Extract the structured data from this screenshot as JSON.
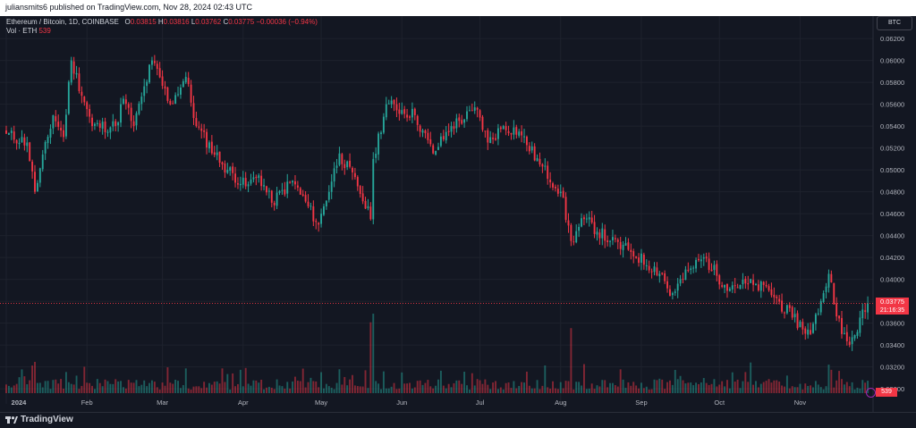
{
  "header": {
    "publish_text": "juliansmits6 published on TradingView.com, Nov 28, 2024 02:43 UTC"
  },
  "legend": {
    "symbol": "Ethereum / Bitcoin, 1D, COINBASE",
    "o_label": "O",
    "o_value": "0.03815",
    "h_label": "H",
    "h_value": "0.03816",
    "l_label": "L",
    "l_value": "0.03762",
    "c_label": "C",
    "c_value": "0.03775",
    "change": "−0.00036 (−0.94%)",
    "vol_label": "Vol · ETH",
    "vol_value": "539"
  },
  "currency_button": "BTC",
  "last_price": {
    "price": "0.03775",
    "countdown": "21:16:35"
  },
  "volume_tag": "539",
  "footer": {
    "brand": "TradingView"
  },
  "colors": {
    "up": "#26a69a",
    "down": "#f23645",
    "background": "#131722",
    "grid": "#1e222d",
    "text": "#b2b5be"
  },
  "chart_data": {
    "type": "candlestick",
    "title": "Ethereum / Bitcoin, 1D, COINBASE",
    "y_axis": {
      "ticks": [
        "0.06200",
        "0.06000",
        "0.05800",
        "0.05600",
        "0.05400",
        "0.05200",
        "0.05000",
        "0.04800",
        "0.04600",
        "0.04400",
        "0.04200",
        "0.04000",
        "0.03800",
        "0.03600",
        "0.03400",
        "0.03200",
        "0.03000"
      ],
      "range": [
        0.0296,
        0.0634
      ]
    },
    "x_axis": {
      "ticks": [
        "2024",
        "Feb",
        "Mar",
        "Apr",
        "May",
        "Jun",
        "Jul",
        "Aug",
        "Sep",
        "Oct",
        "Nov"
      ]
    },
    "series": [
      {
        "name": "ETH/BTC",
        "anchor_dates": [
          "2024-01-01",
          "2024-01-09",
          "2024-01-12",
          "2024-01-19",
          "2024-01-23",
          "2024-01-26",
          "2024-02-03",
          "2024-02-12",
          "2024-02-15",
          "2024-02-19",
          "2024-02-26",
          "2024-03-04",
          "2024-03-10",
          "2024-03-14",
          "2024-03-24",
          "2024-04-02",
          "2024-04-07",
          "2024-04-12",
          "2024-04-20",
          "2024-04-30",
          "2024-05-08",
          "2024-05-15",
          "2024-05-20",
          "2024-05-21",
          "2024-05-26",
          "2024-06-06",
          "2024-06-13",
          "2024-06-20",
          "2024-06-30",
          "2024-07-04",
          "2024-07-10",
          "2024-07-16",
          "2024-07-24",
          "2024-08-01",
          "2024-08-05",
          "2024-08-10",
          "2024-08-20",
          "2024-08-28",
          "2024-09-09",
          "2024-09-12",
          "2024-09-20",
          "2024-09-25",
          "2024-10-03",
          "2024-10-14",
          "2024-10-20",
          "2024-10-29",
          "2024-11-05",
          "2024-11-09",
          "2024-11-12",
          "2024-11-17",
          "2024-11-20",
          "2024-11-27"
        ],
        "anchor_closes": [
          0.0533,
          0.0525,
          0.048,
          0.055,
          0.053,
          0.06,
          0.054,
          0.054,
          0.0565,
          0.054,
          0.06,
          0.056,
          0.0585,
          0.054,
          0.0505,
          0.0485,
          0.0495,
          0.047,
          0.049,
          0.045,
          0.0515,
          0.0485,
          0.0455,
          0.051,
          0.056,
          0.055,
          0.0515,
          0.054,
          0.0555,
          0.0525,
          0.054,
          0.0535,
          0.0505,
          0.048,
          0.0435,
          0.0455,
          0.0435,
          0.0425,
          0.0405,
          0.0385,
          0.041,
          0.042,
          0.0395,
          0.0395,
          0.039,
          0.0365,
          0.035,
          0.038,
          0.0405,
          0.035,
          0.034,
          0.0378
        ],
        "volume": {
          "baseline": 539,
          "spikes": [
            {
              "date": "2024-01-11",
              "level": "high"
            },
            {
              "date": "2024-01-12",
              "level": "high"
            },
            {
              "date": "2024-05-20",
              "level": "very high"
            },
            {
              "date": "2024-05-21",
              "level": "very high"
            },
            {
              "date": "2024-08-05",
              "level": "very high"
            },
            {
              "date": "2024-11-12",
              "level": "high"
            }
          ]
        }
      }
    ]
  }
}
